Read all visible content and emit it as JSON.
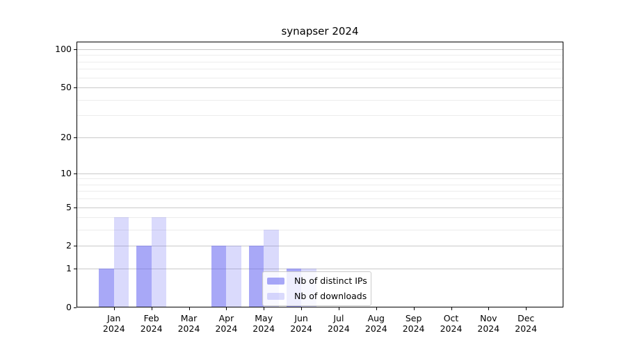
{
  "chart_data": {
    "type": "bar",
    "title": "synapser 2024",
    "categories": [
      "Jan",
      "Feb",
      "Mar",
      "Apr",
      "May",
      "Jun",
      "Jul",
      "Aug",
      "Sep",
      "Oct",
      "Nov",
      "Dec"
    ],
    "category_year": "2024",
    "series": [
      {
        "name": "Nb of distinct IPs",
        "color": "rgba(97,97,240,0.55)",
        "values": [
          1,
          2,
          0,
          2,
          2,
          1,
          0,
          0,
          0,
          0,
          0,
          0
        ]
      },
      {
        "name": "Nb of downloads",
        "color": "rgba(97,97,240,0.23)",
        "values": [
          4,
          4,
          0,
          2,
          3,
          1,
          0,
          0,
          0,
          0,
          0,
          0
        ]
      }
    ],
    "y_axis": {
      "scale": "log1p",
      "major_ticks": [
        0,
        1,
        2,
        5,
        10,
        20,
        50,
        100
      ],
      "minor_ticks": [
        3,
        4,
        6,
        7,
        8,
        9,
        30,
        40,
        60,
        70,
        80,
        90
      ],
      "top_value": 114.7,
      "ylim": [
        0,
        114.7
      ]
    },
    "x_axis": {
      "slots": 13,
      "bar_width_fraction": 0.4
    },
    "legend": {
      "position": "lower center-right"
    },
    "colors": {
      "major_grid": "#c9c9c9",
      "minor_grid": "#ececec",
      "spine": "#000000",
      "text": "#000000"
    }
  }
}
